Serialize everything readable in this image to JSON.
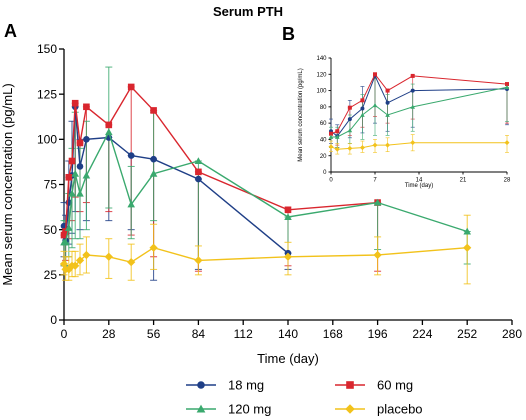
{
  "figure": {
    "title": "Serum PTH",
    "panel_a": "A",
    "panel_b": "B"
  },
  "colors": {
    "18 mg": "#1f3f87",
    "60 mg": "#d9262e",
    "120 mg": "#3aa96e",
    "placebo": "#f2c21b"
  },
  "chart_data": [
    {
      "id": "A",
      "type": "line",
      "title": "Serum PTH",
      "xlabel": "Time (day)",
      "ylabel": "Mean serum concentration (pg/mL)",
      "xlim": [
        0,
        280
      ],
      "ylim": [
        0,
        150
      ],
      "xticks": [
        0,
        28,
        56,
        84,
        112,
        140,
        168,
        196,
        224,
        252,
        280
      ],
      "yticks": [
        0,
        25,
        50,
        75,
        100,
        125,
        150
      ],
      "legend": "bottom",
      "grid": false,
      "series": [
        {
          "name": "18 mg",
          "marker": "circle",
          "points": [
            {
              "x": 0,
              "y": 52,
              "lo": 35,
              "hi": 65
            },
            {
              "x": 1,
              "y": 44,
              "lo": 30,
              "hi": 58
            },
            {
              "x": 3,
              "y": 65,
              "lo": 42,
              "hi": 88
            },
            {
              "x": 5,
              "y": 80,
              "lo": 48,
              "hi": 110
            },
            {
              "x": 7,
              "y": 118,
              "lo": 60,
              "hi": 118
            },
            {
              "x": 10,
              "y": 85,
              "lo": 50,
              "hi": 100
            },
            {
              "x": 14,
              "y": 100,
              "lo": 55,
              "hi": 100
            },
            {
              "x": 28,
              "y": 101,
              "lo": 55,
              "hi": 101
            },
            {
              "x": 42,
              "y": 91,
              "lo": 50,
              "hi": 91
            },
            {
              "x": 56,
              "y": 89,
              "lo": 22,
              "hi": 89
            },
            {
              "x": 84,
              "y": 78,
              "lo": 28,
              "hi": 78
            },
            {
              "x": 140,
              "y": 37,
              "lo": 28,
              "hi": 37
            }
          ]
        },
        {
          "name": "60 mg",
          "marker": "square",
          "points": [
            {
              "x": 0,
              "y": 47,
              "lo": 30,
              "hi": 47
            },
            {
              "x": 1,
              "y": 49,
              "lo": 33,
              "hi": 49
            },
            {
              "x": 3,
              "y": 79,
              "lo": 45,
              "hi": 79
            },
            {
              "x": 5,
              "y": 88,
              "lo": 55,
              "hi": 88
            },
            {
              "x": 7,
              "y": 120,
              "lo": 68,
              "hi": 120
            },
            {
              "x": 10,
              "y": 98,
              "lo": 60,
              "hi": 98
            },
            {
              "x": 14,
              "y": 118,
              "lo": 65,
              "hi": 118
            },
            {
              "x": 28,
              "y": 108,
              "lo": 60,
              "hi": 108
            },
            {
              "x": 42,
              "y": 129,
              "lo": 47,
              "hi": 129
            },
            {
              "x": 56,
              "y": 116,
              "lo": 35,
              "hi": 116
            },
            {
              "x": 84,
              "y": 82,
              "lo": 27,
              "hi": 82
            },
            {
              "x": 140,
              "y": 61,
              "lo": 30,
              "hi": 61
            },
            {
              "x": 196,
              "y": 65,
              "lo": 27,
              "hi": 65
            }
          ]
        },
        {
          "name": "120 mg",
          "marker": "triangle",
          "points": [
            {
              "x": 0,
              "y": 43,
              "lo": 30,
              "hi": 55
            },
            {
              "x": 1,
              "y": 43,
              "lo": 30,
              "hi": 55
            },
            {
              "x": 3,
              "y": 51,
              "lo": 35,
              "hi": 70
            },
            {
              "x": 5,
              "y": 70,
              "lo": 40,
              "hi": 95
            },
            {
              "x": 7,
              "y": 81,
              "lo": 45,
              "hi": 115
            },
            {
              "x": 10,
              "y": 70,
              "lo": 45,
              "hi": 95
            },
            {
              "x": 14,
              "y": 80,
              "lo": 50,
              "hi": 110
            },
            {
              "x": 28,
              "y": 104,
              "lo": 62,
              "hi": 140
            },
            {
              "x": 42,
              "y": 64,
              "lo": 45,
              "hi": 85
            },
            {
              "x": 56,
              "y": 81,
              "lo": 55,
              "hi": 115
            },
            {
              "x": 84,
              "y": 88,
              "lo": 33,
              "hi": 88
            },
            {
              "x": 140,
              "y": 57,
              "lo": 35,
              "hi": 57
            },
            {
              "x": 196,
              "y": 65,
              "lo": 39,
              "hi": 65
            },
            {
              "x": 252,
              "y": 49,
              "lo": 31,
              "hi": 49
            }
          ]
        },
        {
          "name": "placebo",
          "marker": "diamond",
          "points": [
            {
              "x": 0,
              "y": 31,
              "lo": 25,
              "hi": 38
            },
            {
              "x": 1,
              "y": 28,
              "lo": 22,
              "hi": 35
            },
            {
              "x": 3,
              "y": 28,
              "lo": 22,
              "hi": 35
            },
            {
              "x": 5,
              "y": 30,
              "lo": 24,
              "hi": 38
            },
            {
              "x": 7,
              "y": 30,
              "lo": 24,
              "hi": 38
            },
            {
              "x": 10,
              "y": 33,
              "lo": 25,
              "hi": 42
            },
            {
              "x": 14,
              "y": 36,
              "lo": 26,
              "hi": 46
            },
            {
              "x": 28,
              "y": 35,
              "lo": 23,
              "hi": 45
            },
            {
              "x": 42,
              "y": 32,
              "lo": 22,
              "hi": 42
            },
            {
              "x": 56,
              "y": 40,
              "lo": 28,
              "hi": 53
            },
            {
              "x": 84,
              "y": 33,
              "lo": 25,
              "hi": 41
            },
            {
              "x": 140,
              "y": 35,
              "lo": 25,
              "hi": 43
            },
            {
              "x": 196,
              "y": 36,
              "lo": 25,
              "hi": 46
            },
            {
              "x": 252,
              "y": 40,
              "lo": 20,
              "hi": 58
            }
          ]
        }
      ]
    },
    {
      "id": "B",
      "type": "line",
      "title": "",
      "xlabel": "Time (day)",
      "ylabel": "Mean serum concentration (pg/mL)",
      "xlim": [
        0,
        28
      ],
      "ylim": [
        0,
        140
      ],
      "xticks": [
        0,
        7,
        14,
        21,
        28
      ],
      "yticks": [
        0,
        20,
        40,
        60,
        80,
        100,
        120,
        140
      ],
      "legend": "none",
      "grid": false,
      "series": [
        {
          "name": "18 mg",
          "marker": "circle",
          "points": [
            {
              "x": 0,
              "y": 50,
              "lo": 35,
              "hi": 65
            },
            {
              "x": 1,
              "y": 44,
              "lo": 30,
              "hi": 58
            },
            {
              "x": 3,
              "y": 65,
              "lo": 42,
              "hi": 88
            },
            {
              "x": 5,
              "y": 78,
              "lo": 48,
              "hi": 105
            },
            {
              "x": 7,
              "y": 118,
              "lo": 60,
              "hi": 118
            },
            {
              "x": 9,
              "y": 85,
              "lo": 50,
              "hi": 100
            },
            {
              "x": 13,
              "y": 100,
              "lo": 55,
              "hi": 100
            },
            {
              "x": 28,
              "y": 102,
              "lo": 58,
              "hi": 102
            }
          ]
        },
        {
          "name": "60 mg",
          "marker": "square",
          "points": [
            {
              "x": 0,
              "y": 47,
              "lo": 30,
              "hi": 47
            },
            {
              "x": 1,
              "y": 50,
              "lo": 33,
              "hi": 50
            },
            {
              "x": 3,
              "y": 79,
              "lo": 45,
              "hi": 79
            },
            {
              "x": 5,
              "y": 88,
              "lo": 55,
              "hi": 88
            },
            {
              "x": 7,
              "y": 120,
              "lo": 68,
              "hi": 120
            },
            {
              "x": 9,
              "y": 100,
              "lo": 60,
              "hi": 100
            },
            {
              "x": 13,
              "y": 118,
              "lo": 65,
              "hi": 118
            },
            {
              "x": 28,
              "y": 108,
              "lo": 60,
              "hi": 108
            }
          ]
        },
        {
          "name": "120 mg",
          "marker": "triangle",
          "points": [
            {
              "x": 0,
              "y": 43,
              "lo": 30,
              "hi": 55
            },
            {
              "x": 1,
              "y": 43,
              "lo": 30,
              "hi": 55
            },
            {
              "x": 3,
              "y": 51,
              "lo": 35,
              "hi": 70
            },
            {
              "x": 5,
              "y": 70,
              "lo": 40,
              "hi": 95
            },
            {
              "x": 7,
              "y": 82,
              "lo": 45,
              "hi": 115
            },
            {
              "x": 9,
              "y": 70,
              "lo": 45,
              "hi": 95
            },
            {
              "x": 13,
              "y": 80,
              "lo": 50,
              "hi": 108
            },
            {
              "x": 28,
              "y": 104,
              "lo": 62,
              "hi": 104
            }
          ]
        },
        {
          "name": "placebo",
          "marker": "diamond",
          "points": [
            {
              "x": 0,
              "y": 31,
              "lo": 25,
              "hi": 38
            },
            {
              "x": 1,
              "y": 28,
              "lo": 22,
              "hi": 35
            },
            {
              "x": 3,
              "y": 29,
              "lo": 22,
              "hi": 35
            },
            {
              "x": 5,
              "y": 30,
              "lo": 24,
              "hi": 38
            },
            {
              "x": 7,
              "y": 33,
              "lo": 24,
              "hi": 40
            },
            {
              "x": 9,
              "y": 33,
              "lo": 25,
              "hi": 42
            },
            {
              "x": 13,
              "y": 36,
              "lo": 26,
              "hi": 46
            },
            {
              "x": 28,
              "y": 36,
              "lo": 24,
              "hi": 45
            }
          ]
        }
      ]
    }
  ]
}
